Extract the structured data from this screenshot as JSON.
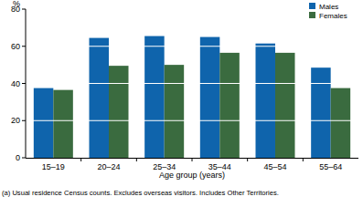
{
  "chart_data": {
    "type": "bar",
    "y_label": "%",
    "x_label": "Age group (years)",
    "footnote": "(a) Usual residence Census counts. Excludes overseas visitors. Includes Other Territories.",
    "categories": [
      "15–19",
      "20–24",
      "25–34",
      "35–44",
      "45–54",
      "55–64"
    ],
    "series": [
      {
        "name": "Males",
        "color": "#0f64ac",
        "values": [
          37.5,
          64.5,
          65.5,
          65,
          61.5,
          48.5
        ]
      },
      {
        "name": "Females",
        "color": "#3a6b3f",
        "values": [
          36.5,
          49.5,
          50,
          56.5,
          56.5,
          37.5
        ]
      }
    ],
    "ylim": [
      0,
      80
    ],
    "yticks": [
      0,
      20,
      40,
      60,
      80
    ],
    "grid": true,
    "legend": "upper right"
  }
}
